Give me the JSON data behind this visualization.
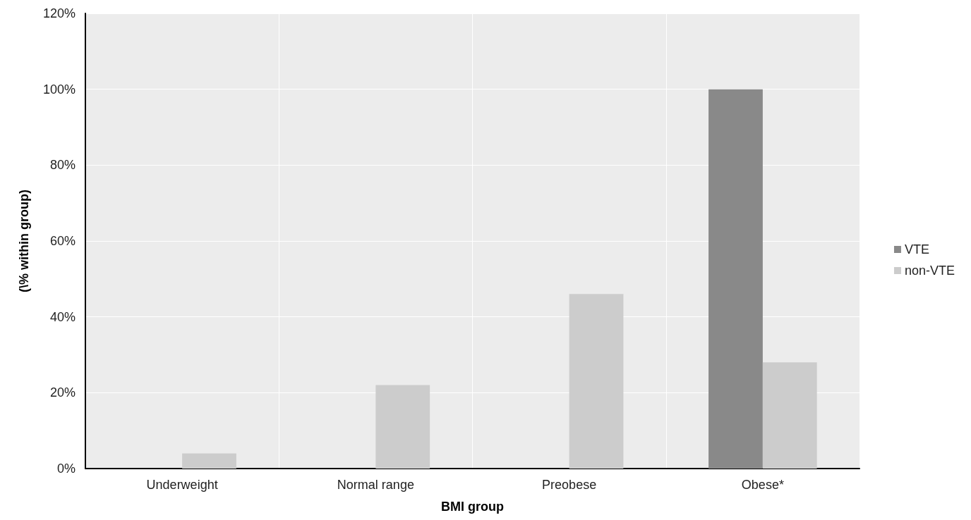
{
  "chart_data": {
    "type": "bar",
    "xlabel": "BMI group",
    "ylabel": "(\\% within group)",
    "categories": [
      "Underweight",
      "Normal range",
      "Preobese",
      "Obese*"
    ],
    "series": [
      {
        "name": "VTE",
        "color": "#898989",
        "values": [
          0,
          0,
          0,
          100
        ]
      },
      {
        "name": "non-VTE",
        "color": "#cccccc",
        "values": [
          4,
          22,
          46,
          28
        ]
      }
    ],
    "ylim": [
      0,
      120
    ],
    "yticks": [
      {
        "value": 0,
        "label": "0%"
      },
      {
        "value": 20,
        "label": "20%"
      },
      {
        "value": 40,
        "label": "40%"
      },
      {
        "value": 60,
        "label": "60%"
      },
      {
        "value": 80,
        "label": "80%"
      },
      {
        "value": 100,
        "label": "100%"
      },
      {
        "value": 120,
        "label": "120%"
      }
    ],
    "grid": true,
    "legend": "right"
  }
}
